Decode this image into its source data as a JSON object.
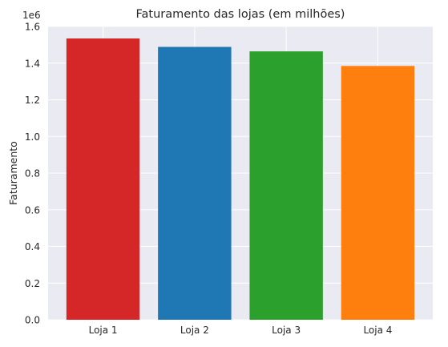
{
  "chart_data": {
    "type": "bar",
    "title": "Faturamento das lojas (em milhões)",
    "xlabel": "",
    "ylabel": "Faturamento",
    "y_offset_label": "1e6",
    "categories": [
      "Loja 1",
      "Loja 2",
      "Loja 3",
      "Loja 4"
    ],
    "values": [
      1534509.12,
      1488459.06,
      1464025.03,
      1384497.58
    ],
    "bar_colors": [
      "#d62728",
      "#1f77b4",
      "#2ca02c",
      "#ff7f0e"
    ],
    "ylim": [
      0,
      1600000
    ],
    "yticks": [
      0,
      200000,
      400000,
      600000,
      800000,
      1000000,
      1200000,
      1400000,
      1600000
    ],
    "ytick_labels": [
      "0.0",
      "0.2",
      "0.4",
      "0.6",
      "0.8",
      "1.0",
      "1.2",
      "1.4",
      "1.6"
    ],
    "grid": true,
    "background_color": "#eaeaf2",
    "grid_color": "#ffffff"
  }
}
